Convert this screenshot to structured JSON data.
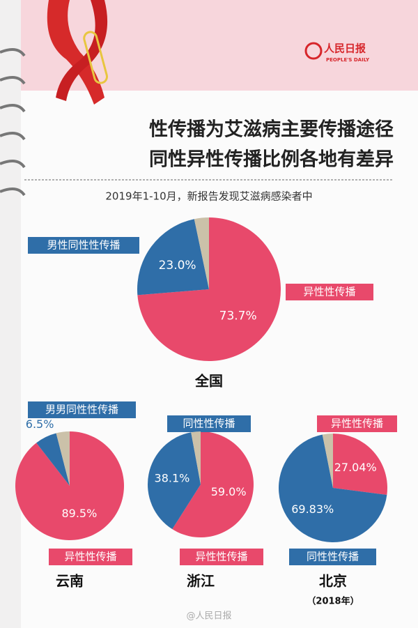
{
  "header": {
    "logo": "人民日报",
    "logo_en": "PEOPLE'S DAILY",
    "title_lines": [
      "性传播为艾滋病主要传播途径",
      "同性异性传播比例各地有差异"
    ],
    "subtitle": "2019年1-10月，新报告发现艾滋病感染者中",
    "watermark": "@人民日报"
  },
  "chart_data": [
    {
      "type": "pie",
      "title": "全国",
      "categories": [
        "异性性传播",
        "男性同性性传播",
        null
      ],
      "values": [
        73.7,
        23.0,
        3.3
      ],
      "value_labels": [
        "73.7%",
        "23.0%",
        null
      ],
      "colors": [
        "#e8496b",
        "#2f6ea8",
        "#cbc1a9"
      ]
    },
    {
      "type": "pie",
      "title": "云南",
      "categories": [
        "异性性传播",
        "男男同性性传播",
        null
      ],
      "values": [
        89.5,
        6.5,
        4.0
      ],
      "value_labels": [
        "89.5%",
        "6.5%",
        null
      ],
      "colors": [
        "#e8496b",
        "#2f6ea8",
        "#cbc1a9"
      ]
    },
    {
      "type": "pie",
      "title": "浙江",
      "categories": [
        "异性性传播",
        "同性性传播",
        null
      ],
      "values": [
        59.0,
        38.1,
        2.9
      ],
      "value_labels": [
        "59.0%",
        "38.1%",
        null
      ],
      "colors": [
        "#e8496b",
        "#2f6ea8",
        "#cbc1a9"
      ]
    },
    {
      "type": "pie",
      "title": "北京",
      "subtitle": "（2018年）",
      "categories": [
        "异性性传播",
        "同性性传播",
        null
      ],
      "values": [
        27.04,
        69.83,
        3.13
      ],
      "value_labels": [
        "27.04%",
        "69.83%",
        null
      ],
      "colors": [
        "#e8496b",
        "#2f6ea8",
        "#cbc1a9"
      ]
    }
  ]
}
